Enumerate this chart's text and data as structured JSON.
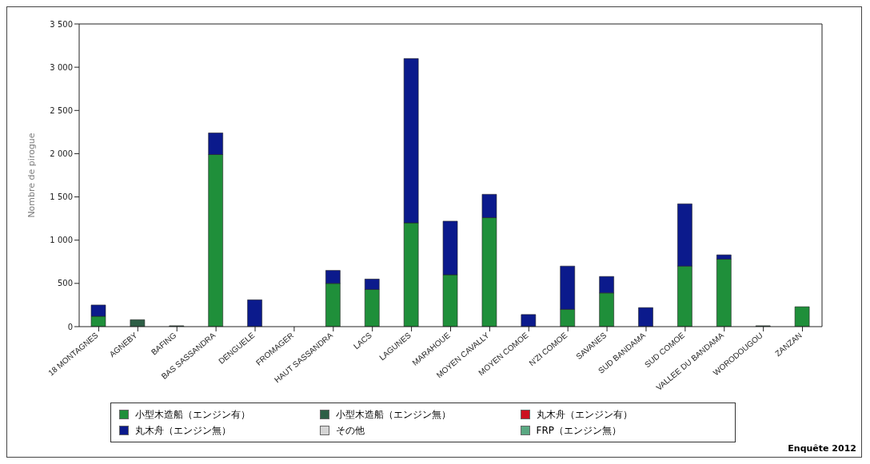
{
  "chart_data": {
    "type": "bar",
    "stacked": true,
    "ylabel": "Nombre de pirogue",
    "categories": [
      "18 MONTAGNES",
      "AGNEBY",
      "BAFING",
      "BAS SASSANDRA",
      "DENGUELE",
      "FROMAGER",
      "HAUT SASSANDRA",
      "LACS",
      "LAGUNES",
      "MARAHOUE",
      "MOYEN CAVALLY",
      "MOYEN COMOE",
      "N'ZI COMOE",
      "SAVANES",
      "SUD BANDAMA",
      "SUD COMOE",
      "VALLEE DU BANDAMA",
      "WORODOUGOU",
      "ZANZAN"
    ],
    "series": [
      {
        "name": "小型木造船（エンジン有）",
        "color": "#1f8f3a",
        "values": [
          120,
          0,
          0,
          1990,
          0,
          0,
          500,
          430,
          1200,
          600,
          1260,
          0,
          200,
          390,
          0,
          700,
          780,
          0,
          230
        ]
      },
      {
        "name": "小型木造船（エンジン無）",
        "color": "#2d5e45",
        "values": [
          0,
          80,
          10,
          0,
          0,
          0,
          0,
          0,
          0,
          0,
          0,
          0,
          0,
          0,
          0,
          0,
          0,
          10,
          0
        ]
      },
      {
        "name": "丸木舟（エンジン有）",
        "color": "#cc1020",
        "values": [
          0,
          0,
          0,
          0,
          0,
          0,
          0,
          0,
          0,
          0,
          0,
          0,
          0,
          0,
          0,
          0,
          0,
          0,
          0
        ]
      },
      {
        "name": "丸木舟（エンジン無）",
        "color": "#0b1a8c",
        "values": [
          130,
          0,
          0,
          250,
          310,
          0,
          150,
          120,
          1900,
          620,
          270,
          140,
          500,
          190,
          220,
          720,
          50,
          0,
          0
        ]
      },
      {
        "name": "その他",
        "color": "#d4d4d4",
        "values": [
          0,
          0,
          0,
          0,
          0,
          0,
          0,
          0,
          0,
          0,
          0,
          0,
          0,
          0,
          0,
          0,
          0,
          0,
          0
        ]
      },
      {
        "name": "FRP（エンジン無）",
        "color": "#5aa882",
        "values": [
          0,
          0,
          0,
          0,
          0,
          0,
          0,
          0,
          0,
          0,
          0,
          0,
          0,
          0,
          0,
          0,
          0,
          0,
          0
        ]
      }
    ],
    "ylim": [
      0,
      3500
    ],
    "yticks": [
      0,
      500,
      {
        "value": 1000,
        "label": "1 000"
      },
      {
        "value": 1500,
        "label": "1 500"
      },
      {
        "value": 2000,
        "label": "2 000"
      },
      {
        "value": 2500,
        "label": "2 500"
      },
      {
        "value": 3000,
        "label": "3 000"
      },
      {
        "value": 3500,
        "label": "3 500"
      }
    ],
    "grid": false,
    "legend": "bottom",
    "annotations": [
      "Enquête 2012"
    ]
  }
}
